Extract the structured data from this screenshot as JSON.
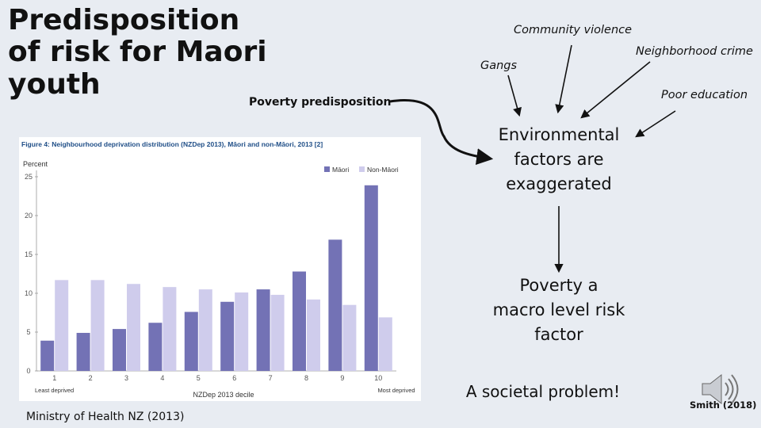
{
  "slide": {
    "title_lines": [
      "Predisposition",
      "of risk for Maori",
      "youth"
    ],
    "poverty_predisposition": "Poverty predisposition",
    "community_violence": "Community violence",
    "neighborhood_crime": "Neighborhood crime",
    "gangs": "Gangs",
    "poor_education": "Poor education",
    "environmental": [
      "Environmental",
      "factors are",
      "exaggerated"
    ],
    "poverty_macro": [
      "Poverty a",
      "macro level risk",
      "factor"
    ],
    "societal_problem": "A societal problem!",
    "source_left": "Ministry of Health NZ (2013)",
    "source_right": "Smith (2018)",
    "icons": [
      "speaker-icon"
    ]
  },
  "chart_data": {
    "type": "bar",
    "title": "Figure 4: Neighbourhood deprivation distribution (NZDep 2013), Māori and non-Māori, 2013 [2]",
    "ylabel": "Percent",
    "xlabel": "NZDep 2013 decile",
    "x_sub_left": "Least deprived",
    "x_sub_right": "Most deprived",
    "ylim": [
      0,
      25
    ],
    "yticks": [
      "25",
      "20",
      "15",
      "10",
      "5",
      "0"
    ],
    "categories": [
      "1",
      "2",
      "3",
      "4",
      "5",
      "6",
      "7",
      "8",
      "9",
      "10"
    ],
    "series": [
      {
        "name": "Māori",
        "color": "#7372b5",
        "values": [
          3.9,
          4.9,
          5.4,
          6.2,
          7.6,
          8.9,
          10.5,
          12.8,
          16.9,
          23.9
        ]
      },
      {
        "name": "Non-Māori",
        "color": "#cfccec",
        "values": [
          11.7,
          11.7,
          11.2,
          10.8,
          10.5,
          10.1,
          9.8,
          9.2,
          8.5,
          6.9
        ]
      }
    ],
    "title_color": "#1f4e87",
    "legend_position": "top-right",
    "grid": false
  }
}
